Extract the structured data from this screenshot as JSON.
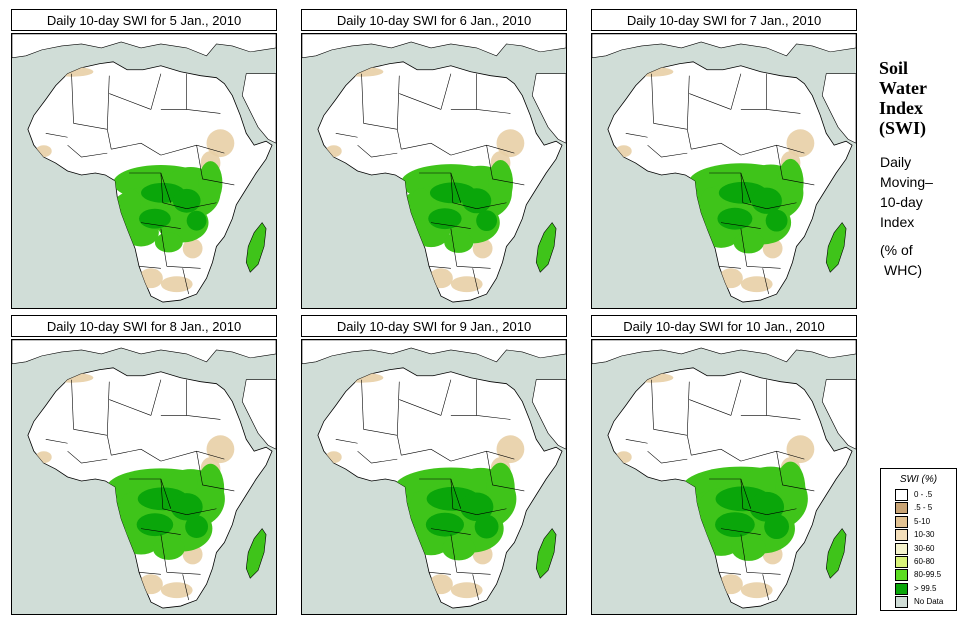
{
  "panels": [
    {
      "title": "Daily 10-day SWI for  5 Jan., 2010"
    },
    {
      "title": "Daily 10-day SWI for  6 Jan., 2010"
    },
    {
      "title": "Daily 10-day SWI for  7 Jan., 2010"
    },
    {
      "title": "Daily 10-day SWI for  8 Jan., 2010"
    },
    {
      "title": "Daily 10-day SWI for  9 Jan., 2010"
    },
    {
      "title": "Daily 10-day SWI for  10 Jan., 2010"
    }
  ],
  "side": {
    "title_lines": [
      "Soil",
      "Water",
      "Index",
      "(SWI)"
    ],
    "subtitle_lines": [
      "Daily",
      "Moving–",
      "10-day",
      "Index"
    ],
    "unit_lines": [
      "(% of",
      "WHC)"
    ]
  },
  "legend": {
    "title": "SWI (%)",
    "items": [
      {
        "label": "0 - .5",
        "color": "#ffffff"
      },
      {
        "label": ".5 - 5",
        "color": "#c8a374"
      },
      {
        "label": "5-10",
        "color": "#e2c292"
      },
      {
        "label": "10-30",
        "color": "#f3deba"
      },
      {
        "label": "30-60",
        "color": "#f4f2cb"
      },
      {
        "label": "60-80",
        "color": "#d8f279"
      },
      {
        "label": "80-99.5",
        "color": "#5cdc22"
      },
      {
        "label": "> 99.5",
        "color": "#0aa60a"
      },
      {
        "label": "No Data",
        "color": "#d0ddd7"
      }
    ]
  },
  "colors": {
    "ocean": "#d0ddd7",
    "land": "#ffffff",
    "dry": "#e8cfa6",
    "wet": "#3fc41a",
    "very_wet": "#0aa60a",
    "border": "#000000"
  }
}
